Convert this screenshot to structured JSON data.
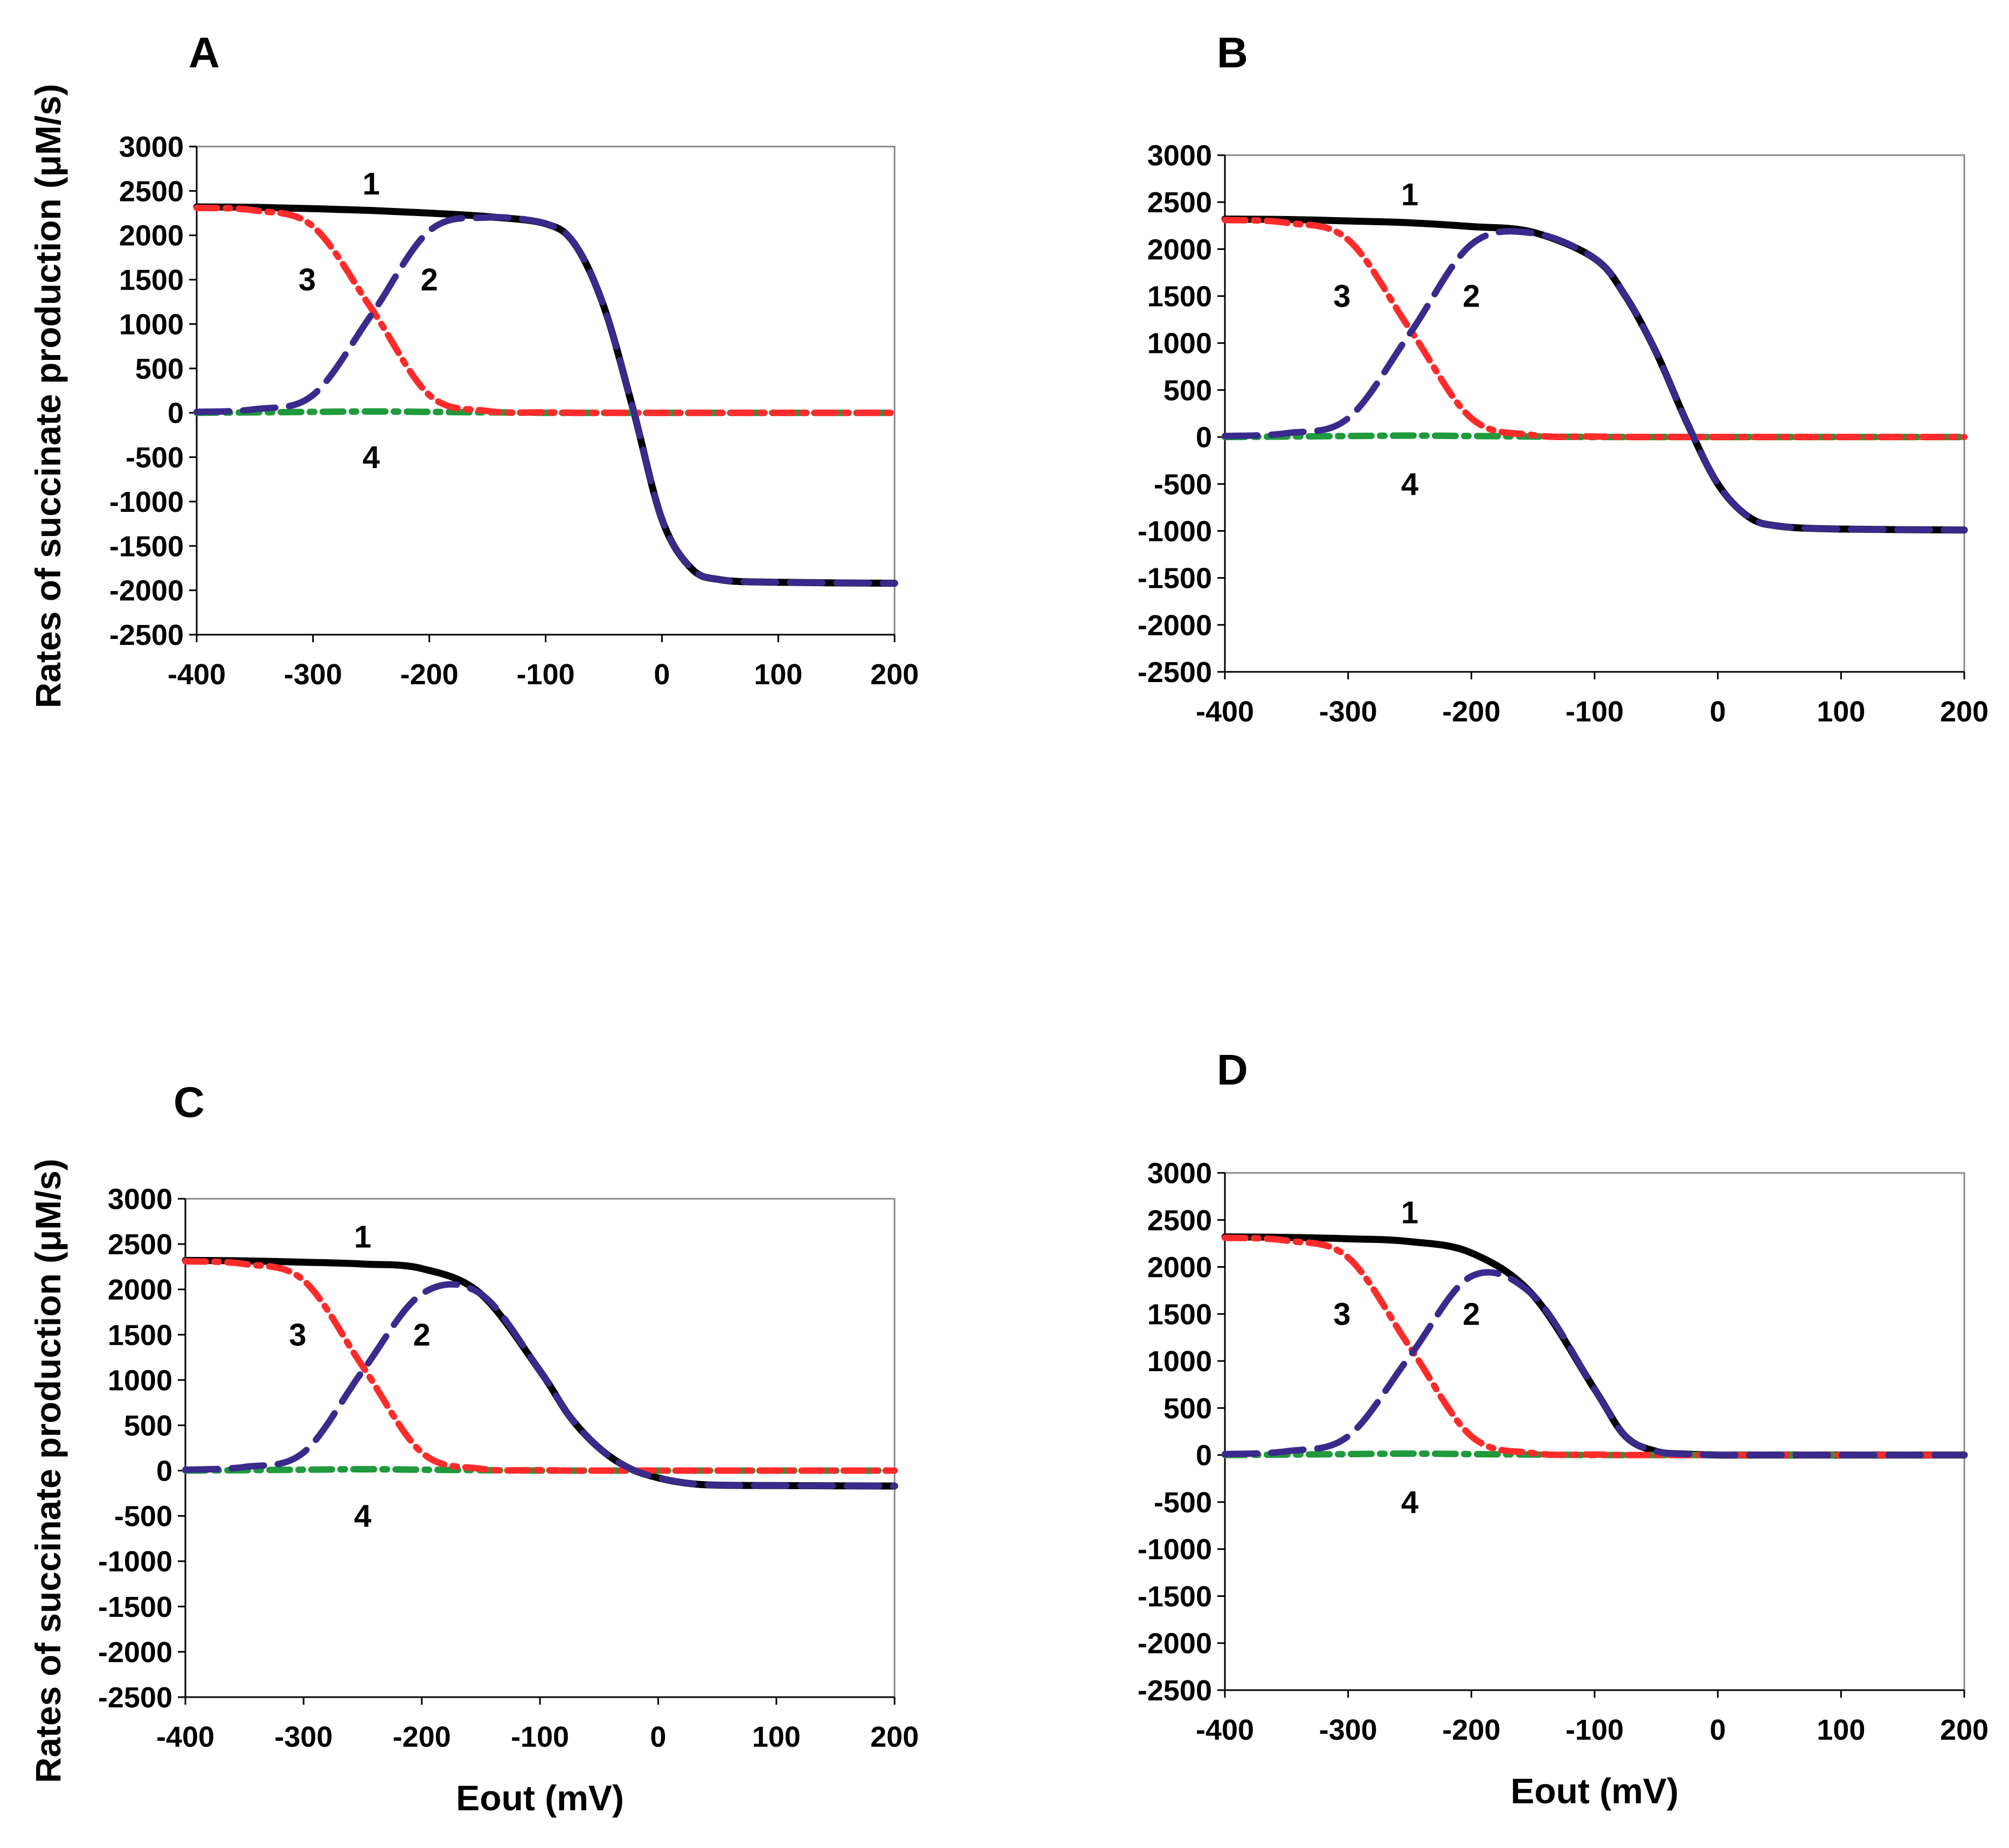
{
  "figure": {
    "y_axis_title": "Rates of succinate production (μM/s)",
    "x_axis_title": "Eout   (mV)"
  },
  "chart_data": [
    {
      "panel": "A",
      "type": "line",
      "xlabel": "",
      "ylabel": "Rates of succinate production (μM/s)",
      "xlim": [
        -400,
        200
      ],
      "ylim": [
        -2500,
        3000
      ],
      "xticks": [
        "-400",
        "-300",
        "-200",
        "-100",
        "0",
        "100",
        "200"
      ],
      "yticks": [
        "3000",
        "2500",
        "2000",
        "1500",
        "1000",
        "500",
        "0",
        "-500",
        "-1000",
        "-1500",
        "-2000",
        "-2500"
      ],
      "x": [
        -400,
        -350,
        -300,
        -250,
        -200,
        -150,
        -100,
        -75,
        -50,
        -25,
        0,
        25,
        50,
        100,
        200
      ],
      "series": [
        {
          "name": "1",
          "label": "1",
          "color": "#000000",
          "values": [
            2320,
            2315,
            2300,
            2280,
            2250,
            2210,
            2130,
            1900,
            1200,
            50,
            -1200,
            -1750,
            -1880,
            -1910,
            -1920
          ]
        },
        {
          "name": "2",
          "label": "2",
          "color": "#3a2a8c",
          "values": [
            10,
            40,
            200,
            1100,
            2050,
            2200,
            2130,
            1900,
            1200,
            50,
            -1200,
            -1750,
            -1880,
            -1910,
            -1920
          ]
        },
        {
          "name": "3",
          "label": "3",
          "color": "#ff2b2b",
          "values": [
            2310,
            2280,
            2100,
            1180,
            200,
            20,
            5,
            0,
            0,
            0,
            0,
            0,
            0,
            0,
            0
          ]
        },
        {
          "name": "4",
          "label": "4",
          "color": "#1f9a3c",
          "values": [
            0,
            5,
            10,
            15,
            10,
            5,
            0,
            0,
            0,
            0,
            0,
            0,
            0,
            0,
            0
          ]
        }
      ]
    },
    {
      "panel": "B",
      "type": "line",
      "xlabel": "",
      "ylabel": "",
      "xlim": [
        -400,
        200
      ],
      "ylim": [
        -2500,
        3000
      ],
      "xticks": [
        "-400",
        "-300",
        "-200",
        "-100",
        "0",
        "100",
        "200"
      ],
      "yticks": [
        "3000",
        "2500",
        "2000",
        "1500",
        "1000",
        "500",
        "0",
        "-500",
        "-1000",
        "-1500",
        "-2000",
        "-2500"
      ],
      "x": [
        -400,
        -350,
        -300,
        -250,
        -200,
        -150,
        -100,
        -75,
        -50,
        -25,
        0,
        25,
        50,
        100,
        200
      ],
      "series": [
        {
          "name": "1",
          "label": "1",
          "color": "#000000",
          "values": [
            2320,
            2315,
            2300,
            2280,
            2240,
            2180,
            1900,
            1500,
            900,
            150,
            -500,
            -850,
            -950,
            -980,
            -990
          ]
        },
        {
          "name": "2",
          "label": "2",
          "color": "#3a2a8c",
          "values": [
            10,
            40,
            200,
            1100,
            2050,
            2170,
            1900,
            1500,
            900,
            150,
            -500,
            -850,
            -950,
            -980,
            -990
          ]
        },
        {
          "name": "3",
          "label": "3",
          "color": "#ff2b2b",
          "values": [
            2310,
            2280,
            2100,
            1150,
            200,
            20,
            5,
            0,
            0,
            0,
            0,
            0,
            0,
            0,
            0
          ]
        },
        {
          "name": "4",
          "label": "4",
          "color": "#1f9a3c",
          "values": [
            0,
            5,
            10,
            15,
            10,
            5,
            0,
            0,
            0,
            0,
            0,
            0,
            0,
            0,
            0
          ]
        }
      ]
    },
    {
      "panel": "C",
      "type": "line",
      "xlabel": "Eout   (mV)",
      "ylabel": "Rates of succinate production (μM/s)",
      "xlim": [
        -400,
        200
      ],
      "ylim": [
        -2500,
        3000
      ],
      "xticks": [
        "-400",
        "-300",
        "-200",
        "-100",
        "0",
        "100",
        "200"
      ],
      "yticks": [
        "3000",
        "2500",
        "2000",
        "1500",
        "1000",
        "500",
        "0",
        "-500",
        "-1000",
        "-1500",
        "-2000",
        "-2500"
      ],
      "x": [
        -400,
        -350,
        -300,
        -250,
        -200,
        -150,
        -100,
        -75,
        -50,
        -25,
        0,
        25,
        50,
        100,
        200
      ],
      "series": [
        {
          "name": "1",
          "label": "1",
          "color": "#000000",
          "values": [
            2320,
            2315,
            2300,
            2280,
            2230,
            1950,
            1100,
            600,
            250,
            30,
            -80,
            -140,
            -160,
            -165,
            -170
          ]
        },
        {
          "name": "2",
          "label": "2",
          "color": "#3a2a8c",
          "values": [
            10,
            40,
            200,
            1100,
            1950,
            1950,
            1100,
            600,
            250,
            30,
            -80,
            -140,
            -160,
            -165,
            -170
          ]
        },
        {
          "name": "3",
          "label": "3",
          "color": "#ff2b2b",
          "values": [
            2310,
            2280,
            2100,
            1150,
            200,
            20,
            5,
            0,
            0,
            0,
            0,
            0,
            0,
            0,
            0
          ]
        },
        {
          "name": "4",
          "label": "4",
          "color": "#1f9a3c",
          "values": [
            0,
            5,
            10,
            15,
            10,
            5,
            0,
            0,
            0,
            0,
            0,
            0,
            0,
            0,
            0
          ]
        }
      ]
    },
    {
      "panel": "D",
      "type": "line",
      "xlabel": "Eout   (mV)",
      "ylabel": "",
      "xlim": [
        -400,
        200
      ],
      "ylim": [
        -2500,
        3000
      ],
      "xticks": [
        "-400",
        "-300",
        "-200",
        "-100",
        "0",
        "100",
        "200"
      ],
      "yticks": [
        "3000",
        "2500",
        "2000",
        "1500",
        "1000",
        "500",
        "0",
        "-500",
        "-1000",
        "-1500",
        "-2000",
        "-2500"
      ],
      "x": [
        -400,
        -350,
        -300,
        -250,
        -200,
        -150,
        -100,
        -75,
        -50,
        -25,
        0,
        25,
        50,
        100,
        200
      ],
      "series": [
        {
          "name": "1",
          "label": "1",
          "color": "#000000",
          "values": [
            2320,
            2315,
            2300,
            2270,
            2150,
            1700,
            700,
            200,
            40,
            10,
            0,
            0,
            0,
            0,
            0
          ]
        },
        {
          "name": "2",
          "label": "2",
          "color": "#3a2a8c",
          "values": [
            10,
            40,
            200,
            1050,
            1900,
            1700,
            700,
            200,
            40,
            10,
            0,
            0,
            0,
            0,
            0
          ]
        },
        {
          "name": "3",
          "label": "3",
          "color": "#ff2b2b",
          "values": [
            2310,
            2280,
            2100,
            1150,
            200,
            20,
            5,
            0,
            0,
            0,
            0,
            0,
            0,
            0,
            0
          ]
        },
        {
          "name": "4",
          "label": "4",
          "color": "#1f9a3c",
          "values": [
            0,
            5,
            10,
            15,
            10,
            5,
            0,
            0,
            0,
            0,
            0,
            0,
            0,
            0,
            0
          ]
        }
      ]
    }
  ]
}
